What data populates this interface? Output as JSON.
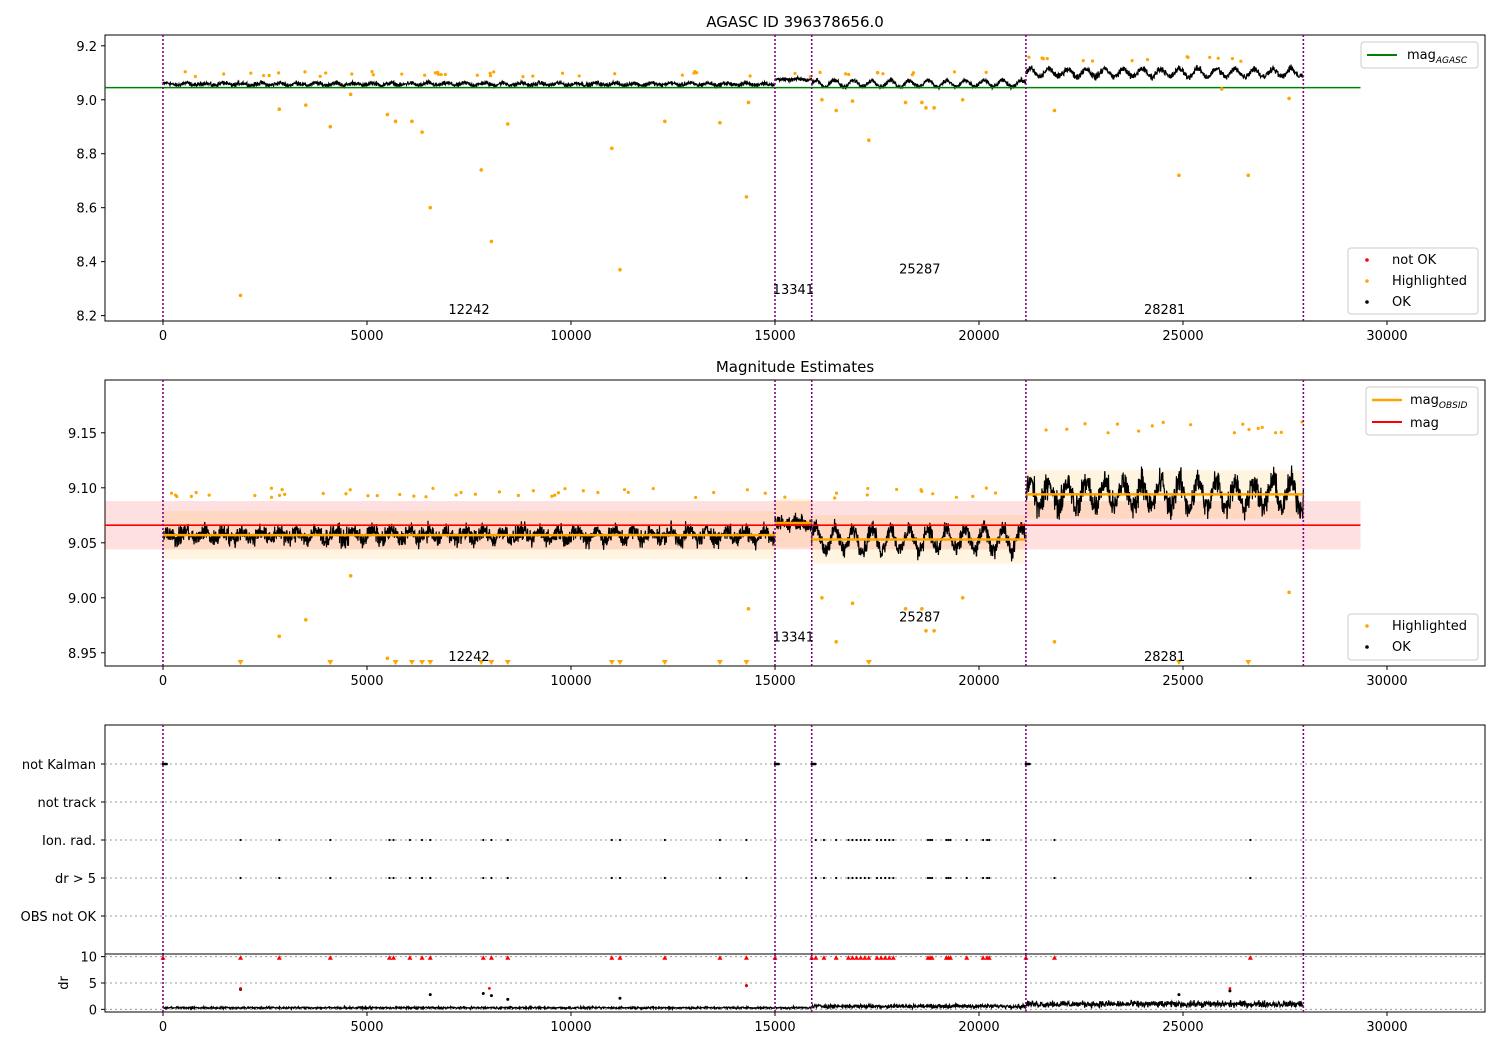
{
  "figure": {
    "obsid_boundaries": [
      0,
      15000,
      15900,
      21150,
      27950
    ],
    "panels": {
      "agasc": {
        "title": "AGASC ID 396378656.0",
        "ylim": [
          8.18,
          9.24
        ],
        "yticks": [
          8.2,
          8.4,
          8.6,
          8.8,
          9.0,
          9.2
        ],
        "xticks": [
          0,
          5000,
          10000,
          15000,
          20000,
          25000,
          30000
        ],
        "mag_agasc": 9.045,
        "legend_upper": [
          {
            "label": "mag",
            "subscript": "AGASC",
            "color": "#008000"
          }
        ],
        "legend_lower": [
          {
            "label": "not OK",
            "color": "#ff0000"
          },
          {
            "label": "Highlighted",
            "color": "#ffa500"
          },
          {
            "label": "OK",
            "color": "#000000"
          }
        ],
        "obsid_labels": [
          {
            "text": "12242",
            "x": 7500,
            "y": 8.22
          },
          {
            "text": "13341",
            "x": 15450,
            "y": 8.295
          },
          {
            "text": "25287",
            "x": 18550,
            "y": 8.37
          },
          {
            "text": "28281",
            "x": 24550,
            "y": 8.22
          }
        ]
      },
      "estimates": {
        "title": "Magnitude Estimates",
        "ylim": [
          8.938,
          9.198
        ],
        "yticks": [
          8.95,
          9.0,
          9.05,
          9.1,
          9.15
        ],
        "xticks": [
          0,
          5000,
          10000,
          15000,
          20000,
          25000,
          30000
        ],
        "mag": 9.066,
        "mag_band": [
          9.044,
          9.088
        ],
        "mag_obsid": [
          {
            "x0": 0,
            "x1": 15000,
            "y": 9.057
          },
          {
            "x0": 15000,
            "x1": 15900,
            "y": 9.068
          },
          {
            "x0": 15900,
            "x1": 21150,
            "y": 9.053
          },
          {
            "x0": 21150,
            "x1": 27950,
            "y": 9.094
          }
        ],
        "legend_upper": [
          {
            "label": "mag",
            "subscript": "OBSID",
            "color": "#ffa500"
          },
          {
            "label": "mag",
            "color": "#ff0000"
          }
        ],
        "legend_lower": [
          {
            "label": "Highlighted",
            "color": "#ffa500"
          },
          {
            "label": "OK",
            "color": "#000000"
          }
        ],
        "obsid_labels": [
          {
            "text": "12242",
            "x": 7500,
            "y": 8.946
          },
          {
            "text": "13341",
            "x": 15450,
            "y": 8.964
          },
          {
            "text": "25287",
            "x": 18550,
            "y": 8.982
          },
          {
            "text": "28281",
            "x": 24550,
            "y": 8.946
          }
        ]
      },
      "flags": {
        "categories": [
          "not Kalman",
          "not track",
          "Ion. rad.",
          "dr > 5",
          "OBS not OK"
        ],
        "ion_rad_x": [
          1900,
          2850,
          4100,
          5550,
          5650,
          6050,
          6350,
          6550,
          7850,
          8050,
          8450,
          11000,
          11200,
          12300,
          13650,
          14300,
          16000,
          16200,
          16500,
          16800,
          16900,
          17000,
          17100,
          17200,
          17300,
          17500,
          17600,
          17700,
          17800,
          17900,
          18750,
          18800,
          18850,
          19200,
          19250,
          19300,
          19700,
          20100,
          20200,
          20250,
          21850,
          26650
        ],
        "not_kalman_x": [
          0,
          15000,
          15900,
          21150
        ]
      },
      "dr": {
        "ylabel": "dr",
        "ylim": [
          -0.5,
          10.5
        ],
        "yticks": [
          0,
          5,
          10
        ],
        "xticks": [
          0,
          5000,
          10000,
          15000,
          20000,
          25000,
          30000
        ],
        "outliers": [
          {
            "x": 1900,
            "y": 3.8
          },
          {
            "x": 6550,
            "y": 2.8
          },
          {
            "x": 7850,
            "y": 3.0
          },
          {
            "x": 8050,
            "y": 2.6
          },
          {
            "x": 8450,
            "y": 1.9
          },
          {
            "x": 11200,
            "y": 2.1
          },
          {
            "x": 14300,
            "y": 4.5
          },
          {
            "x": 24900,
            "y": 2.8
          },
          {
            "x": 26150,
            "y": 3.5
          }
        ]
      }
    },
    "chart_data": [
      {
        "type": "scatter",
        "title": "AGASC ID 396378656.0",
        "xlabel": "",
        "ylabel": "",
        "xlim": [
          -1400,
          32300
        ],
        "ylim": [
          8.18,
          9.24
        ],
        "legend": [
          "mag_AGASC",
          "not OK",
          "Highlighted",
          "OK"
        ],
        "series": [
          {
            "name": "OK",
            "segments": [
              {
                "x": [
                  0,
                  15000
                ],
                "mean": 9.058,
                "spread": 0.02
              },
              {
                "x": [
                  15000,
                  15900
                ],
                "mean": 9.075,
                "spread": 0.015
              },
              {
                "x": [
                  15900,
                  21150
                ],
                "mean": 9.06,
                "spread": 0.025
              },
              {
                "x": [
                  21150,
                  27950
                ],
                "mean": 9.095,
                "spread": 0.035
              }
            ]
          },
          {
            "name": "Highlighted",
            "x": [
              1900,
              2850,
              3500,
              4100,
              4600,
              5500,
              5700,
              6100,
              6350,
              6550,
              7800,
              8050,
              8450,
              11000,
              11200,
              12300,
              13650,
              14300,
              14350,
              16150,
              16500,
              16900,
              17300,
              18200,
              18600,
              18700,
              18900,
              19600,
              21850,
              24900,
              25950,
              26600,
              27600
            ],
            "y": [
              8.275,
              8.965,
              8.98,
              8.9,
              9.02,
              8.945,
              8.92,
              8.92,
              8.88,
              8.6,
              8.74,
              8.475,
              8.91,
              8.82,
              8.37,
              8.92,
              8.915,
              8.64,
              8.99,
              9.0,
              8.96,
              8.995,
              8.85,
              8.99,
              8.99,
              8.97,
              8.97,
              9.0,
              8.96,
              8.72,
              9.04,
              8.72,
              9.005
            ]
          },
          {
            "name": "mag_AGASC",
            "y": 9.045
          }
        ]
      },
      {
        "type": "scatter",
        "title": "Magnitude Estimates",
        "xlim": [
          -1400,
          32300
        ],
        "ylim": [
          8.938,
          9.198
        ],
        "series": [
          {
            "name": "mag_OBSID",
            "values": [
              9.057,
              9.068,
              9.053,
              9.094
            ]
          },
          {
            "name": "mag",
            "y": 9.066,
            "band": [
              9.044,
              9.088
            ]
          }
        ]
      },
      {
        "type": "scatter",
        "categories": [
          "not Kalman",
          "not track",
          "Ion. rad.",
          "dr > 5",
          "OBS not OK"
        ],
        "xlim": [
          -1400,
          32300
        ]
      },
      {
        "type": "scatter",
        "ylabel": "dr",
        "ylim": [
          -0.5,
          10.5
        ],
        "xlim": [
          -1400,
          32300
        ]
      }
    ]
  }
}
